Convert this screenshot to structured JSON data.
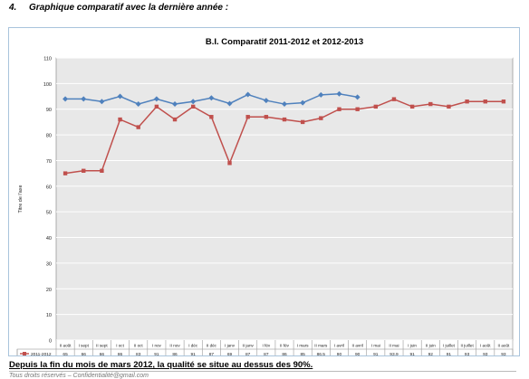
{
  "page": {
    "heading_number": "4.",
    "heading_text": "Graphique comparatif avec la dernière année :",
    "caption": "Depuis la fin du mois de mars 2012, la qualité se situe au dessus des 90%.",
    "footer": "Tous droits réservés – Confidentialité@gmail.com"
  },
  "chart_data": {
    "type": "line",
    "title": "B.I. Comparatif 2011-2012 et 2012-2013",
    "ylabel": "Titre de l'axe",
    "xlabel": "",
    "ylim": [
      0,
      110
    ],
    "yticks": [
      0,
      10,
      20,
      30,
      40,
      50,
      60,
      70,
      80,
      90,
      100,
      110
    ],
    "grid": true,
    "categories": [
      "II août",
      "I sept",
      "II sept",
      "I oct",
      "II oct",
      "I nov",
      "II nov",
      "I déc",
      "II déc",
      "I janv",
      "II janv",
      "I fév",
      "II fév",
      "I mars",
      "II mars",
      "I avril",
      "II avril",
      "I mai",
      "II mai",
      "I juin",
      "II juin",
      "I juillet",
      "II juillet",
      "I août",
      "II août"
    ],
    "series": [
      {
        "name": "2011-2012",
        "color": "#c0504d",
        "marker": "square",
        "values": [
          65,
          66,
          66,
          86,
          83,
          91,
          86,
          91,
          87,
          69,
          87,
          87,
          86,
          85,
          86.5,
          90,
          90,
          91,
          93.9,
          91,
          92,
          91,
          93,
          93,
          93
        ],
        "labels": [
          "65",
          "66",
          "66",
          "86",
          "83",
          "91",
          "86",
          "91",
          "87",
          "69",
          "87",
          "87",
          "86",
          "85",
          "86,5",
          "90",
          "90",
          "91",
          "93,9",
          "91",
          "92",
          "91",
          "93",
          "93",
          "93"
        ]
      },
      {
        "name": "2012-2013",
        "color": "#4f81bd",
        "marker": "diamond",
        "values": [
          94,
          94,
          93,
          95,
          92,
          94,
          92,
          93,
          94.4,
          92.2,
          95.7,
          93.4,
          92,
          92.5,
          95.6,
          96,
          94.7,
          null,
          null,
          null,
          null,
          null,
          null,
          null,
          null
        ],
        "labels": [
          "94",
          "94",
          "93",
          "95",
          "92",
          "94",
          "92",
          "93",
          "94,4",
          "92,2",
          "95,7",
          "93,4",
          "92",
          "92,5",
          "95,6",
          "96",
          "94,7",
          "",
          "",
          "",
          "",
          "",
          "",
          "",
          ""
        ]
      }
    ]
  }
}
